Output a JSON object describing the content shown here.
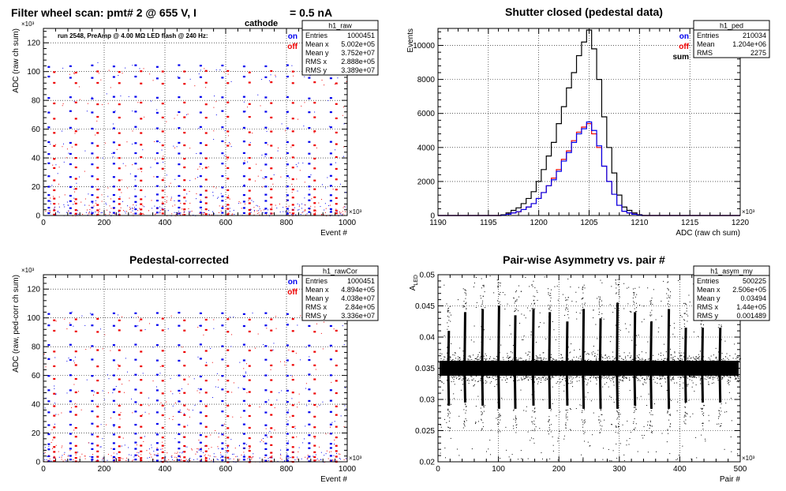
{
  "page_title": {
    "main": "Filter wheel scan: pmt#   2 @   655 V, I",
    "subscript": "cathode",
    "tail": "= 0.5 nA"
  },
  "chart_data": [
    {
      "id": "raw",
      "type": "scatter",
      "title": "",
      "subtitle": "run 2548, PreAmp @ 4.00 MΩ  LED flash @  240 Hz:",
      "xlabel": "Event #",
      "ylabel": "ADC (raw ch sum)",
      "x_multiplier": "×10³",
      "y_multiplier": "×10³",
      "xlim": [
        0,
        1000
      ],
      "ylim": [
        0,
        130
      ],
      "xticks_major": [
        0,
        200,
        400,
        600,
        800,
        1000
      ],
      "yticks_major": [
        0,
        20,
        40,
        60,
        80,
        100,
        120
      ],
      "grid": true,
      "legend_position": "top-right",
      "legend": [
        {
          "label": "on",
          "color": "#0000ee"
        },
        {
          "label": "off",
          "color": "#ee0000"
        }
      ],
      "stats_box": {
        "name": "h1_raw",
        "rows": [
          [
            "Entries",
            "1000451"
          ],
          [
            "Mean x",
            "5.002e+05"
          ],
          [
            "Mean y",
            "3.752e+07"
          ],
          [
            "RMS x",
            "2.888e+05"
          ],
          [
            "RMS y",
            "3.389e+07"
          ]
        ]
      },
      "series": [
        {
          "name": "on",
          "color": "#0000ee",
          "levels": [
            104,
            96,
            82,
            72,
            61,
            51,
            43,
            36,
            27,
            20,
            14,
            10,
            5,
            2
          ]
        },
        {
          "name": "off",
          "color": "#ee0000",
          "levels": [
            100,
            92,
            78,
            68,
            58,
            49,
            40,
            33,
            25,
            18,
            12,
            8,
            4,
            1
          ]
        }
      ],
      "step_count": 14
    },
    {
      "id": "ped",
      "type": "line",
      "title": "Shutter closed (pedestal data)",
      "xlabel": "ADC (raw ch sum)",
      "ylabel": "Events",
      "x_multiplier": "×10³",
      "xlim": [
        1190,
        1220
      ],
      "ylim": [
        0,
        11000
      ],
      "xticks_major": [
        1190,
        1195,
        1200,
        1205,
        1210,
        1215,
        1220
      ],
      "yticks_major": [
        0,
        2000,
        4000,
        6000,
        8000,
        10000
      ],
      "grid": true,
      "legend_position": "top-right",
      "legend": [
        {
          "label": "on",
          "color": "#0000ee"
        },
        {
          "label": "off",
          "color": "#ee0000"
        },
        {
          "label": "sum",
          "color": "#000000"
        }
      ],
      "stats_box": {
        "name": "h1_ped",
        "rows": [
          [
            "Entries",
            "210034"
          ],
          [
            "Mean",
            "1.204e+06"
          ],
          [
            "RMS",
            "2275"
          ]
        ]
      },
      "x": [
        1196.5,
        1197,
        1197.5,
        1198,
        1198.5,
        1199,
        1199.5,
        1200,
        1200.5,
        1201,
        1201.5,
        1202,
        1202.5,
        1203,
        1203.5,
        1204,
        1204.5,
        1205,
        1205.5,
        1206,
        1206.5,
        1207,
        1207.5,
        1208,
        1208.5,
        1209,
        1209.5,
        1210
      ],
      "series": [
        {
          "name": "sum",
          "color": "#000000",
          "values": [
            40,
            150,
            300,
            450,
            700,
            1000,
            1400,
            2000,
            2700,
            3500,
            4300,
            5400,
            6400,
            7500,
            8400,
            9400,
            10200,
            10900,
            9800,
            8000,
            5800,
            4000,
            2500,
            1200,
            500,
            300,
            150,
            50
          ]
        },
        {
          "name": "off",
          "color": "#ee0000",
          "values": [
            20,
            75,
            150,
            220,
            350,
            500,
            700,
            1000,
            1350,
            1750,
            2200,
            2700,
            3300,
            3800,
            4400,
            4900,
            5200,
            5400,
            4800,
            4000,
            2900,
            2000,
            1250,
            600,
            250,
            150,
            75,
            25
          ]
        },
        {
          "name": "on",
          "color": "#0000ee",
          "values": [
            20,
            75,
            150,
            230,
            350,
            500,
            700,
            1000,
            1350,
            1750,
            2100,
            2600,
            3200,
            3700,
            4300,
            4800,
            5100,
            5500,
            5000,
            4100,
            2900,
            2000,
            1250,
            600,
            250,
            150,
            75,
            25
          ]
        }
      ]
    },
    {
      "id": "rawCor",
      "type": "scatter",
      "title": "Pedestal-corrected",
      "xlabel": "Event #",
      "ylabel": "ADC (raw, ped-corr ch sum)",
      "x_multiplier": "×10³",
      "y_multiplier": "×10³",
      "xlim": [
        0,
        1000
      ],
      "ylim": [
        0,
        130
      ],
      "xticks_major": [
        0,
        200,
        400,
        600,
        800,
        1000
      ],
      "yticks_major": [
        0,
        20,
        40,
        60,
        80,
        100,
        120
      ],
      "grid": true,
      "legend_position": "top-right",
      "legend": [
        {
          "label": "on",
          "color": "#0000ee"
        },
        {
          "label": "off",
          "color": "#ee0000"
        }
      ],
      "stats_box": {
        "name": "h1_rawCor",
        "rows": [
          [
            "Entries",
            "1000451"
          ],
          [
            "Mean x",
            "4.894e+05"
          ],
          [
            "Mean y",
            "4.038e+07"
          ],
          [
            "RMS x",
            "2.84e+05"
          ],
          [
            "RMS y",
            "3.336e+07"
          ]
        ]
      },
      "series": [
        {
          "name": "on",
          "color": "#0000ee",
          "levels": [
            103,
            95,
            81,
            71,
            60,
            50,
            42,
            35,
            26,
            19,
            13,
            9,
            4,
            1
          ]
        },
        {
          "name": "off",
          "color": "#ee0000",
          "levels": [
            99,
            91,
            77,
            67,
            57,
            48,
            39,
            32,
            24,
            17,
            11,
            7,
            3,
            0.5
          ]
        }
      ],
      "step_count": 14
    },
    {
      "id": "asym",
      "type": "scatter",
      "title": "Pair-wise Asymmetry vs. pair #",
      "xlabel": "Pair #",
      "ylabel": "A_LED",
      "x_multiplier": "×10³",
      "xlim": [
        0,
        500
      ],
      "ylim": [
        0.02,
        0.05
      ],
      "xticks_major": [
        0,
        100,
        200,
        300,
        400,
        500
      ],
      "yticks_major": [
        0.02,
        0.025,
        0.03,
        0.035,
        0.04,
        0.045,
        0.05
      ],
      "grid": true,
      "stats_box": {
        "name": "h1_asym_my",
        "rows": [
          [
            "Entries",
            "500225"
          ],
          [
            "Mean x",
            "2.506e+05"
          ],
          [
            "Mean y",
            "0.03494"
          ],
          [
            "RMS x",
            "1.44e+05"
          ],
          [
            "RMS y",
            "0.001489"
          ]
        ]
      },
      "band_center": 0.035,
      "band_halfwidth": 0.0012,
      "spike_x": [
        17,
        44,
        73,
        100,
        127,
        157,
        184,
        213,
        240,
        268,
        296,
        325,
        352,
        381,
        409,
        437,
        466
      ],
      "spike_top": [
        0.041,
        0.044,
        0.0445,
        0.045,
        0.0435,
        0.0445,
        0.044,
        0.0425,
        0.0445,
        0.043,
        0.0455,
        0.044,
        0.0425,
        0.0445,
        0.0415,
        0.0415,
        0.0415
      ],
      "spike_bottom": [
        0.029,
        0.0295,
        0.029,
        0.0285,
        0.0285,
        0.029,
        0.0285,
        0.029,
        0.0285,
        0.0285,
        0.0285,
        0.029,
        0.0285,
        0.0285,
        0.0295,
        0.0295,
        0.0295
      ]
    }
  ]
}
